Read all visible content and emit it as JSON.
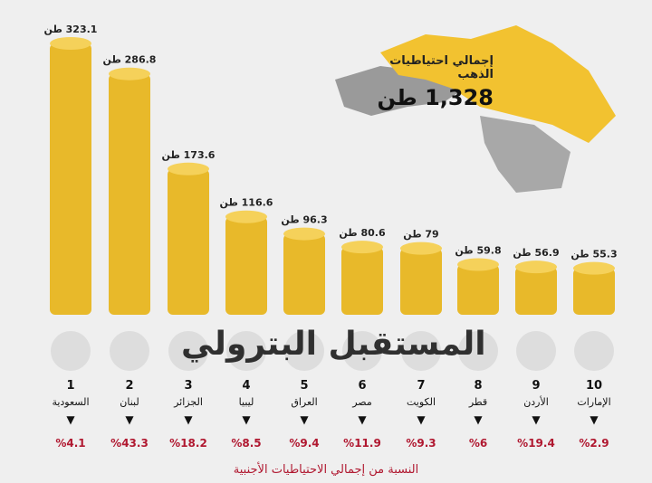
{
  "total": {
    "label": "إجمالي احتياطيات الذهب",
    "value": "1,328",
    "unit": "طن"
  },
  "watermark": "المستقبل البترولي",
  "colors": {
    "gold": "#e8b92a",
    "map_gold": "#f2c230",
    "map_gray": "#9a9a9a",
    "percent": "#b01830"
  },
  "chart_data": {
    "type": "bar",
    "unit": "طن",
    "categories": [
      "السعودية",
      "لبنان",
      "الجزائر",
      "ليبيا",
      "العراق",
      "مصر",
      "الكويت",
      "قطر",
      "الأردن",
      "الإمارات"
    ],
    "ranks": [
      "1",
      "2",
      "3",
      "4",
      "5",
      "6",
      "7",
      "8",
      "9",
      "10"
    ],
    "values": [
      323.1,
      286.8,
      173.6,
      116.6,
      96.3,
      80.6,
      79,
      59.8,
      56.9,
      55.3
    ],
    "value_labels": [
      "323.1",
      "286.8",
      "173.6",
      "116.6",
      "96.3",
      "80.6",
      "79",
      "59.8",
      "56.9",
      "55.3"
    ],
    "percent_labels": [
      "%4.1",
      "%43.3",
      "%18.2",
      "%8.5",
      "%9.4",
      "%11.9",
      "%9.3",
      "%6",
      "%19.4",
      "%2.9"
    ],
    "percent_caption": "النسبة من إجمالي الاحتياطيات الأجنبية",
    "flags": [
      "saudi-flag",
      "lebanon-flag",
      "algeria-flag",
      "libya-flag",
      "iraq-flag",
      "egypt-flag",
      "kuwait-flag",
      "qatar-flag",
      "jordan-flag",
      "uae-flag"
    ]
  }
}
